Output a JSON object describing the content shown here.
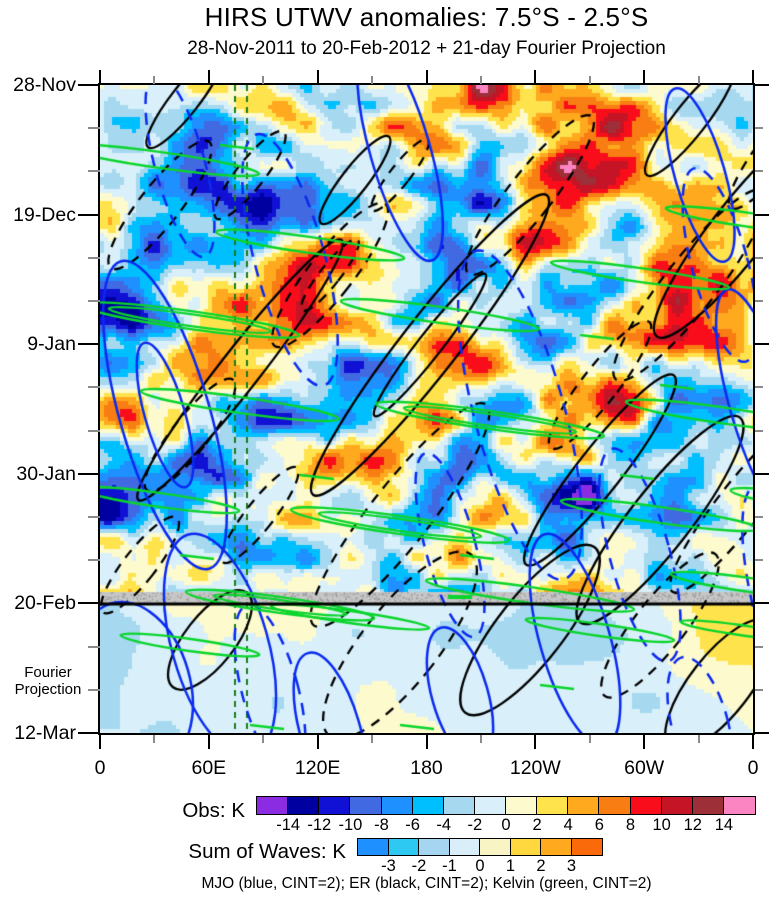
{
  "title": "HIRS UTWV anomalies: 7.5°S - 2.5°S",
  "subtitle": "28-Nov-2011 to 20-Feb-2012 + 21-day Fourier Projection",
  "caption": "MJO (blue, CINT=2); ER (black, CINT=2); Kelvin (green, CINT=2)",
  "y_axis": {
    "tick_labels": [
      "28-Nov",
      "19-Dec",
      "9-Jan",
      "30-Jan",
      "20-Feb",
      "12-Mar"
    ],
    "major_interval_days": 21,
    "minor_interval_days": 7,
    "annotation_line1": "Fourier",
    "annotation_line2": "Projection"
  },
  "x_axis": {
    "tick_labels": [
      "0",
      "60E",
      "120E",
      "180",
      "120W",
      "60W",
      "0"
    ],
    "major_interval_deg": 60,
    "minor_interval_deg": 30,
    "range_deg": [
      0,
      360
    ]
  },
  "colorbars": {
    "obs": {
      "label": "Obs: K",
      "tick_labels": [
        "-14",
        "-12",
        "-10",
        "-8",
        "-6",
        "-4",
        "-2",
        "0",
        "2",
        "4",
        "6",
        "8",
        "10",
        "12",
        "14"
      ],
      "colors": [
        "#8b2be2",
        "#0000a0",
        "#1111d6",
        "#4169e1",
        "#1e90ff",
        "#00bfff",
        "#a6d9f0",
        "#d9f0fa",
        "#fdfacd",
        "#ffe34d",
        "#ffa91e",
        "#f87d12",
        "#fa0d1b",
        "#c41425",
        "#9c2f38",
        "#fb84c2"
      ]
    },
    "waves": {
      "label": "Sum of Waves: K",
      "tick_labels": [
        "-3",
        "-2",
        "-1",
        "0",
        "1",
        "2",
        "3"
      ],
      "colors": [
        "#1e90ff",
        "#2ec9f2",
        "#a5d5f0",
        "#daeefa",
        "#f8f4c4",
        "#ffd73e",
        "#ffa91e",
        "#fb6a0a"
      ]
    }
  },
  "overlays": {
    "mjo": {
      "name": "MJO",
      "color": "#0a2af0",
      "cint": 2
    },
    "er": {
      "name": "ER",
      "color": "#000000",
      "cint": 2
    },
    "kelvin": {
      "name": "Kelvin",
      "color": "#0ad52c",
      "cint": 2
    },
    "divider": {
      "label": "20-Feb",
      "bar_color": "#c6c6c6",
      "line_color": "#000000"
    },
    "reference_lines": {
      "color": "#1a7d1a",
      "style": "dashed-vertical",
      "longitudes_deg_east": [
        74,
        81
      ]
    }
  },
  "chart_data": {
    "type": "heatmap",
    "title": "HIRS UTWV anomalies: 7.5°S - 2.5°S",
    "subtitle": "28-Nov-2011 to 20-Feb-2012 + 21-day Fourier Projection",
    "x": {
      "label": "longitude",
      "range_deg": [
        0,
        360
      ],
      "tick_labels": [
        "0",
        "60E",
        "120E",
        "180",
        "120W",
        "60W",
        "0"
      ],
      "minor_tick_deg": 30
    },
    "y": {
      "label": "time (downward)",
      "start": "28-Nov-2011",
      "end": "12-Mar-2012",
      "tick_labels": [
        "28-Nov",
        "19-Dec",
        "9-Jan",
        "30-Jan",
        "20-Feb",
        "12-Mar"
      ],
      "observation_end": "20-Feb-2012",
      "projection_segment": "21-day Fourier Projection (20-Feb to 12-Mar)"
    },
    "fill_field": {
      "variable": "HIRS upper-tropospheric water vapor anomaly, Obs (K)",
      "contour_interval_K": 2,
      "levels_K": [
        -14,
        -12,
        -10,
        -8,
        -6,
        -4,
        -2,
        0,
        2,
        4,
        6,
        8,
        10,
        12,
        14
      ],
      "palette": [
        "#8b2be2",
        "#0000a0",
        "#1111d6",
        "#4169e1",
        "#1e90ff",
        "#00bfff",
        "#a6d9f0",
        "#d9f0fa",
        "#fdfacd",
        "#ffe34d",
        "#ffa91e",
        "#f87d12",
        "#fa0d1b",
        "#c41425",
        "#9c2f38",
        "#fb84c2"
      ]
    },
    "projection_fill_field": {
      "variable": "Sum of Waves (K)",
      "contour_interval_K": 1,
      "levels_K": [
        -3,
        -2,
        -1,
        0,
        1,
        2,
        3
      ],
      "palette": [
        "#1e90ff",
        "#2ec9f2",
        "#a5d5f0",
        "#daeefa",
        "#f8f4c4",
        "#ffd73e",
        "#ffa91e",
        "#fb6a0a"
      ]
    },
    "overlay_contours": [
      {
        "name": "MJO",
        "color": "blue",
        "cint_K": 2,
        "tilt": "steep, eastward-propagating (down-right)"
      },
      {
        "name": "ER",
        "color": "black",
        "cint_K": 2,
        "tilt": "westward-propagating (down-left)"
      },
      {
        "name": "Kelvin",
        "color": "green",
        "cint_K": 2,
        "tilt": "fast eastward, nearly horizontal thin ellipses"
      }
    ],
    "notable_features": [
      "Strong warm anomaly cluster (> +10 K, cores > +14 K shown pink) near 160E-180 around 17-22 Dec 2011",
      "Major warm envelope with dark-red/pink cores (> +12 K) from ~150E to 150W during late Jan to mid-Feb 2012",
      "Deep cold anomalies (-8 to -12 K) near 60E-110E in mid-to-late January and near the date line in early January",
      "Gray stippled horizontal bar with solid black line marks the observation/projection boundary at 20-Feb-2012",
      "After 20-Feb the field is the smooth 21-day Fourier projection, mostly within ±4 K",
      "Two dark-green dashed vertical reference lines near 74E and 81E span the full time axis"
    ]
  }
}
